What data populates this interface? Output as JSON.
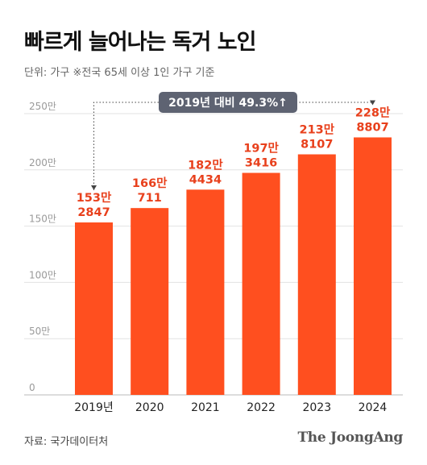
{
  "header": {
    "title": "빠르게 늘어나는 독거 노인",
    "unit_note": "단위: 가구 ※전국 65세 이상 1인 가구 기준"
  },
  "footer": {
    "source": "자료: 국가데이터처",
    "brand": "The JoongAng"
  },
  "colors": {
    "bar": "#ff4f1f",
    "value_label": "#e8401c",
    "callout_bg": "#5e6372",
    "grid": "#e2e2e2"
  },
  "chart_data": {
    "type": "bar",
    "categories": [
      "2019년",
      "2020",
      "2021",
      "2022",
      "2023",
      "2024"
    ],
    "values": [
      1532847,
      1660711,
      1824434,
      1973416,
      2138107,
      2288807
    ],
    "value_labels": [
      [
        "153만",
        "2847"
      ],
      [
        "166만",
        "711"
      ],
      [
        "182만",
        "4434"
      ],
      [
        "197만",
        "3416"
      ],
      [
        "213만",
        "8107"
      ],
      [
        "228만",
        "8807"
      ]
    ],
    "y_ticks": [
      {
        "value": 0,
        "label": "0"
      },
      {
        "value": 500000,
        "label": "50만"
      },
      {
        "value": 1000000,
        "label": "100만"
      },
      {
        "value": 1500000,
        "label": "150만"
      },
      {
        "value": 2000000,
        "label": "200만"
      },
      {
        "value": 2500000,
        "label": "250만"
      }
    ],
    "ylim": [
      0,
      2500000
    ],
    "grid": true,
    "annotation": {
      "text": "2019년 대비 49.3%↑",
      "from_category": "2019년",
      "to_category": "2024"
    }
  }
}
